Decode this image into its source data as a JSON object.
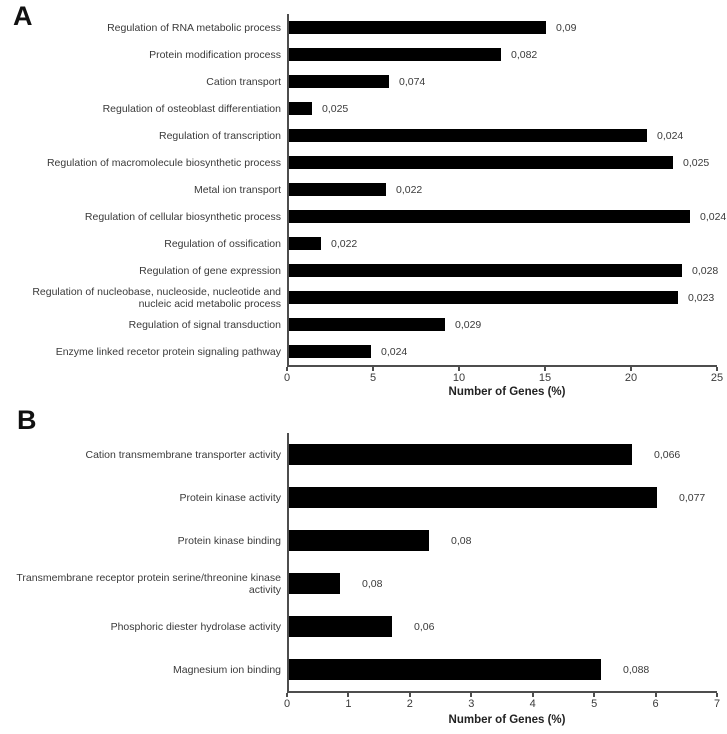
{
  "figure_background": "#ffffff",
  "bar_color_hex": "#000000",
  "axis_color_hex": "#4d4d4d",
  "chart_data": [
    {
      "type": "bar",
      "orientation": "horizontal",
      "panel": "A",
      "categories": [
        "Regulation of RNA metabolic process",
        "Protein modification process",
        "Cation transport",
        "Regulation of osteoblast differentiation",
        "Regulation of transcription",
        "Regulation of macromolecule biosynthetic process",
        "Metal ion transport",
        "Regulation of cellular biosynthetic process",
        "Regulation of ossification",
        "Regulation of gene expression",
        "Regulation of nucleobase, nucleoside, nucleotide and nucleic acid metabolic process",
        "Regulation of signal transduction",
        "Enzyme linked recetor protein signaling pathway"
      ],
      "values": [
        15.0,
        12.4,
        5.9,
        1.4,
        20.9,
        22.4,
        5.7,
        23.4,
        1.9,
        22.9,
        22.7,
        9.1,
        4.8
      ],
      "value_labels": [
        "0,09",
        "0,082",
        "0,074",
        "0,025",
        "0,024",
        "0,025",
        "0,022",
        "0,024",
        "0,022",
        "0,028",
        "0,023",
        "0,029",
        "0,024"
      ],
      "xlabel": "Number of Genes (%)",
      "xlim": [
        0,
        25
      ],
      "xticks": [
        0,
        5,
        10,
        15,
        20,
        25
      ],
      "bar_color": "#000000",
      "grid": false,
      "legend": false
    },
    {
      "type": "bar",
      "orientation": "horizontal",
      "panel": "B",
      "categories": [
        "Cation transmembrane transporter activity",
        "Protein kinase activity",
        "Protein kinase binding",
        "Transmembrane receptor protein serine/threonine kinase activity",
        "Phosphoric diester hydrolase activity",
        "Magnesium ion binding"
      ],
      "values": [
        5.6,
        6.0,
        2.3,
        0.85,
        1.7,
        5.1
      ],
      "value_labels": [
        "0,066",
        "0,077",
        "0,08",
        "0,08",
        "0,06",
        "0,088"
      ],
      "xlabel": "Number of Genes (%)",
      "xlim": [
        0,
        7
      ],
      "xticks": [
        0,
        1,
        2,
        3,
        4,
        5,
        6,
        7
      ],
      "bar_color": "#000000",
      "grid": false,
      "legend": false
    }
  ]
}
